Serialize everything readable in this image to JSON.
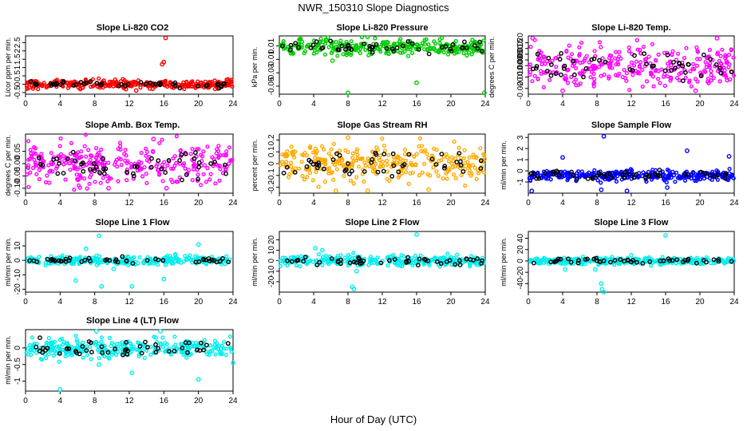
{
  "figure": {
    "title": "NWR_150310  Slope Diagnostics",
    "xlabel": "Hour of Day (UTC)"
  },
  "chart_data": [
    {
      "type": "scatter",
      "title": "Slope Li-820 CO2",
      "ylabel": "Licor ppm per min.",
      "color": "#ff0000",
      "xlim": [
        0,
        24
      ],
      "ylim": [
        -0.6,
        2.9
      ],
      "xticks": [
        0,
        4,
        8,
        12,
        16,
        20,
        24
      ],
      "yticks": [
        -0.5,
        0.0,
        0.5,
        1.0,
        1.5,
        2.0,
        2.5
      ],
      "center": 0.0,
      "spread": 0.13,
      "outliers": [
        [
          16.2,
          2.78
        ],
        [
          16.0,
          1.33
        ],
        [
          15.8,
          1.2
        ],
        [
          12.8,
          -0.38
        ],
        [
          11.6,
          -0.3
        ],
        [
          23.8,
          0.25
        ]
      ]
    },
    {
      "type": "scatter",
      "title": "Slope Li-820 Pressure",
      "ylabel": "kPa per min.",
      "color": "#00cc00",
      "xlim": [
        0,
        24
      ],
      "ylim": [
        -0.062,
        0.025
      ],
      "xticks": [
        0,
        4,
        8,
        12,
        16,
        20,
        24
      ],
      "yticks": [
        -0.05,
        -0.03,
        -0.01,
        0.01
      ],
      "center": 0.008,
      "spread": 0.006,
      "outliers": [
        [
          8.0,
          -0.06
        ],
        [
          16.0,
          -0.045
        ],
        [
          23.9,
          -0.06
        ],
        [
          6.2,
          -0.012
        ],
        [
          5.5,
          0.018
        ]
      ]
    },
    {
      "type": "scatter",
      "title": "Slope Li-820 Temp.",
      "ylabel": "degrees C per min.",
      "color": "#ff00ff",
      "xlim": [
        0,
        24
      ],
      "ylim": [
        -0.025,
        0.026
      ],
      "xticks": [
        0,
        4,
        8,
        12,
        16,
        20,
        24
      ],
      "yticks": [
        -0.02,
        -0.01,
        0.0,
        0.005,
        0.01,
        0.015,
        0.02
      ],
      "ytick_labels": [
        "-0.020",
        "-0.010",
        "0.000",
        "0.005",
        "0.010",
        "0.015",
        "0.020"
      ],
      "center": 0.0,
      "spread": 0.009,
      "outliers": [
        [
          0.5,
          0.024
        ],
        [
          22.0,
          0.024
        ],
        [
          4.0,
          -0.022
        ],
        [
          19.5,
          -0.022
        ]
      ]
    },
    {
      "type": "scatter",
      "title": "Slope Amb. Box Temp.",
      "ylabel": "degrees C per min.",
      "color": "#ff00ff",
      "xlim": [
        0,
        24
      ],
      "ylim": [
        -0.12,
        0.12
      ],
      "xticks": [
        0,
        4,
        8,
        12,
        16,
        20,
        24
      ],
      "yticks": [
        -0.1,
        -0.05,
        0.0,
        0.05
      ],
      "ytick_labels": [
        "-0.10",
        "-0.05",
        "0.00",
        "0.05"
      ],
      "center": 0.0,
      "spread": 0.04,
      "outliers": [
        [
          14.8,
          0.1
        ],
        [
          9.6,
          -0.1
        ],
        [
          16.3,
          -0.1
        ]
      ]
    },
    {
      "type": "scatter",
      "title": "Slope Gas Stream RH",
      "ylabel": "percent per min.",
      "color": "#ffaa00",
      "xlim": [
        0,
        24
      ],
      "ylim": [
        -0.25,
        0.25
      ],
      "xticks": [
        0,
        4,
        8,
        12,
        16,
        20,
        24
      ],
      "yticks": [
        -0.2,
        -0.1,
        0.0,
        0.1,
        0.2
      ],
      "center": 0.0,
      "spread": 0.075,
      "outliers": [
        [
          8.0,
          0.22
        ],
        [
          6.6,
          -0.23
        ],
        [
          10.3,
          -0.23
        ],
        [
          17.4,
          -0.22
        ]
      ]
    },
    {
      "type": "scatter",
      "title": "Slope Sample Flow",
      "ylabel": "ml/min per min.",
      "color": "#0000ff",
      "xlim": [
        0,
        24
      ],
      "ylim": [
        -2.0,
        3.3
      ],
      "xticks": [
        0,
        4,
        8,
        12,
        16,
        20,
        24
      ],
      "yticks": [
        -1,
        0,
        1,
        2,
        3
      ],
      "center": -0.4,
      "spread": 0.25,
      "outliers": [
        [
          8.8,
          3.1
        ],
        [
          18.5,
          1.8
        ],
        [
          8.5,
          -1.7
        ],
        [
          11.5,
          -1.8
        ],
        [
          0.4,
          -1.8
        ],
        [
          16.2,
          -1.5
        ],
        [
          4.0,
          1.2
        ],
        [
          23.4,
          1.3
        ]
      ]
    },
    {
      "type": "scatter",
      "title": "Slope Line 1 Flow",
      "ylabel": "ml/min per min.",
      "color": "#00eeee",
      "xlim": [
        0,
        24
      ],
      "ylim": [
        -22,
        20
      ],
      "xticks": [
        0,
        4,
        8,
        12,
        16,
        20,
        24
      ],
      "yticks": [
        -20,
        -10,
        0,
        10
      ],
      "center": 0.0,
      "spread": 1.5,
      "outliers": [
        [
          8.5,
          17
        ],
        [
          8.8,
          -18
        ],
        [
          5.8,
          -14
        ],
        [
          16.0,
          -13
        ],
        [
          20.0,
          11
        ],
        [
          12.3,
          -18
        ],
        [
          7.0,
          8
        ],
        [
          10.2,
          -6
        ]
      ]
    },
    {
      "type": "scatter",
      "title": "Slope Line 2 Flow",
      "ylabel": "ml/min per min.",
      "color": "#00eeee",
      "xlim": [
        0,
        24
      ],
      "ylim": [
        -30,
        28
      ],
      "xticks": [
        0,
        4,
        8,
        12,
        16,
        20,
        24
      ],
      "yticks": [
        -20,
        -10,
        0,
        10,
        20
      ],
      "center": 0.0,
      "spread": 2.5,
      "outliers": [
        [
          16.0,
          25
        ],
        [
          8.5,
          -25
        ],
        [
          8.7,
          -27
        ],
        [
          4.2,
          12
        ],
        [
          5.0,
          10
        ],
        [
          9.0,
          -10
        ]
      ]
    },
    {
      "type": "scatter",
      "title": "Slope Line 3 Flow",
      "ylabel": "ml/min per min.",
      "color": "#00eeee",
      "xlim": [
        0,
        24
      ],
      "ylim": [
        -55,
        52
      ],
      "xticks": [
        0,
        4,
        8,
        12,
        16,
        20,
        24
      ],
      "yticks": [
        -40,
        -20,
        0,
        20,
        40
      ],
      "center": 0.0,
      "spread": 3.0,
      "outliers": [
        [
          16.0,
          45
        ],
        [
          8.6,
          -50
        ],
        [
          8.8,
          -55
        ],
        [
          8.5,
          -40
        ],
        [
          7.8,
          -15
        ],
        [
          4.3,
          -15
        ],
        [
          12.0,
          10
        ]
      ]
    },
    {
      "type": "scatter",
      "title": "Slope Line 4 (LT) Flow",
      "ylabel": "ml/min per min.",
      "color": "#00eeee",
      "xlim": [
        0,
        24
      ],
      "ylim": [
        -1.3,
        0.55
      ],
      "xticks": [
        0,
        4,
        8,
        12,
        16,
        20,
        24
      ],
      "yticks": [
        -1.0,
        -0.5,
        0.0
      ],
      "center": 0.0,
      "spread": 0.15,
      "outliers": [
        [
          4.0,
          -1.25
        ],
        [
          20.0,
          -0.95
        ],
        [
          12.3,
          -0.75
        ],
        [
          8.5,
          -0.5
        ],
        [
          24.0,
          -0.45
        ],
        [
          8.2,
          0.5
        ],
        [
          15.6,
          0.5
        ]
      ]
    }
  ]
}
